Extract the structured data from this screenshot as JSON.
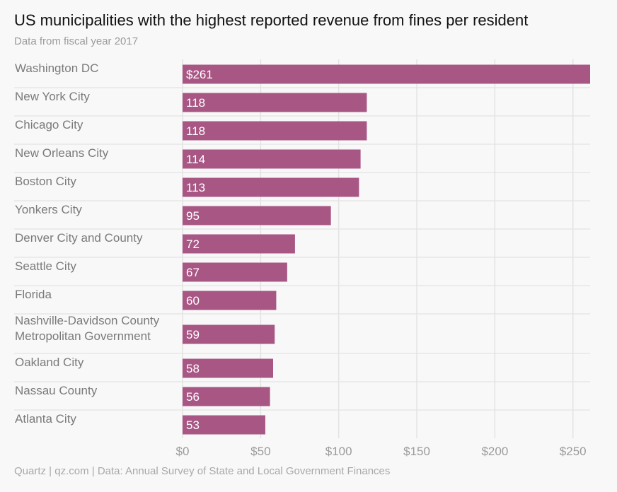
{
  "colors": {
    "bar": "#a85785",
    "bar_label": "#ffffff",
    "category_label": "#7a7a7a",
    "tick_label": "#9b9b9b",
    "gridline": "#e3e3e3",
    "background": "#f8f8f8"
  },
  "chart_data": {
    "type": "bar",
    "orientation": "horizontal",
    "title": "US municipalities with the highest reported revenue from fines per resident",
    "subtitle": "Data from fiscal year 2017",
    "categories": [
      [
        "Washington DC"
      ],
      [
        "New York City"
      ],
      [
        "Chicago City"
      ],
      [
        "New Orleans City"
      ],
      [
        "Boston City"
      ],
      [
        "Yonkers City"
      ],
      [
        "Denver City and County"
      ],
      [
        "Seattle City"
      ],
      [
        "Florida"
      ],
      [
        "Nashville-Davidson County",
        "Metropolitan Government"
      ],
      [
        "Oakland City"
      ],
      [
        "Nassau County"
      ],
      [
        "Atlanta City"
      ]
    ],
    "values": [
      261,
      118,
      118,
      114,
      113,
      95,
      72,
      67,
      60,
      59,
      58,
      56,
      53
    ],
    "value_labels": [
      "$261",
      "118",
      "118",
      "114",
      "113",
      "95",
      "72",
      "67",
      "60",
      "59",
      "58",
      "56",
      "53"
    ],
    "x_ticks": [
      0,
      50,
      100,
      150,
      200,
      250
    ],
    "x_tick_labels": [
      "$0",
      "$50",
      "$100",
      "$150",
      "$200",
      "$250"
    ],
    "xlim": [
      0,
      261
    ],
    "grid": true,
    "legend": "none"
  },
  "footer": "Quartz | qz.com | Data: Annual Survey of State and Local Government Finances"
}
